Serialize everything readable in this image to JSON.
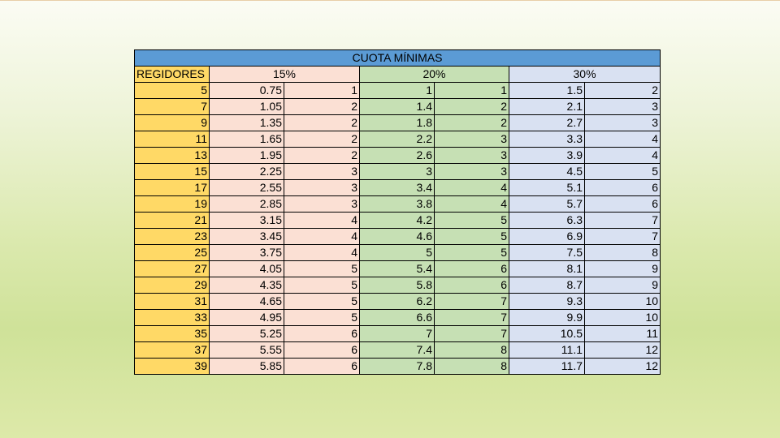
{
  "table": {
    "title": "CUOTA MÍNIMAS",
    "headers": {
      "regidores": "REGIDORES",
      "p15": "15%",
      "p20": "20%",
      "p30": "30%"
    },
    "rows": [
      [
        "5",
        "0.75",
        "1",
        "1",
        "1",
        "1.5",
        "2"
      ],
      [
        "7",
        "1.05",
        "2",
        "1.4",
        "2",
        "2.1",
        "3"
      ],
      [
        "9",
        "1.35",
        "2",
        "1.8",
        "2",
        "2.7",
        "3"
      ],
      [
        "11",
        "1.65",
        "2",
        "2.2",
        "3",
        "3.3",
        "4"
      ],
      [
        "13",
        "1.95",
        "2",
        "2.6",
        "3",
        "3.9",
        "4"
      ],
      [
        "15",
        "2.25",
        "3",
        "3",
        "3",
        "4.5",
        "5"
      ],
      [
        "17",
        "2.55",
        "3",
        "3.4",
        "4",
        "5.1",
        "6"
      ],
      [
        "19",
        "2.85",
        "3",
        "3.8",
        "4",
        "5.7",
        "6"
      ],
      [
        "21",
        "3.15",
        "4",
        "4.2",
        "5",
        "6.3",
        "7"
      ],
      [
        "23",
        "3.45",
        "4",
        "4.6",
        "5",
        "6.9",
        "7"
      ],
      [
        "25",
        "3.75",
        "4",
        "5",
        "5",
        "7.5",
        "8"
      ],
      [
        "27",
        "4.05",
        "5",
        "5.4",
        "6",
        "8.1",
        "9"
      ],
      [
        "29",
        "4.35",
        "5",
        "5.8",
        "6",
        "8.7",
        "9"
      ],
      [
        "31",
        "4.65",
        "5",
        "6.2",
        "7",
        "9.3",
        "10"
      ],
      [
        "33",
        "4.95",
        "5",
        "6.6",
        "7",
        "9.9",
        "10"
      ],
      [
        "35",
        "5.25",
        "6",
        "7",
        "7",
        "10.5",
        "11"
      ],
      [
        "37",
        "5.55",
        "6",
        "7.4",
        "8",
        "11.1",
        "12"
      ],
      [
        "39",
        "5.85",
        "6",
        "7.8",
        "8",
        "11.7",
        "12"
      ]
    ]
  }
}
